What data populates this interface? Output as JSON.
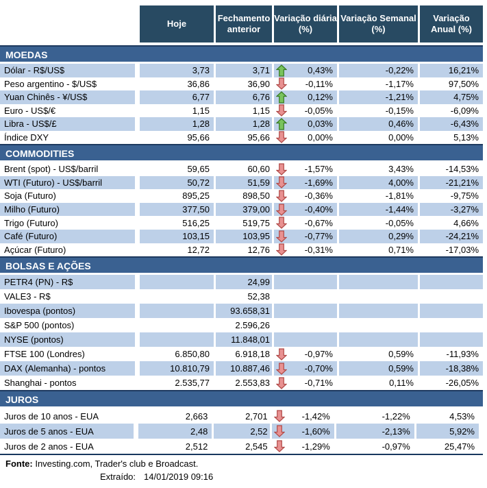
{
  "header": {
    "columns": [
      {
        "line1": "Hoje",
        "line2": ""
      },
      {
        "line1": "Fechamento",
        "line2": "anterior"
      },
      {
        "line1": "Variação diária",
        "line2": "(%)"
      },
      {
        "line1": "Variação Semanal",
        "line2": "(%)"
      },
      {
        "line1": "Variação",
        "line2": "Anual (%)"
      }
    ]
  },
  "sections": [
    {
      "title": "MOEDAS",
      "first_row_shaded": true,
      "rows": [
        {
          "label": "Dólar - R$/US$",
          "hoje": "3,73",
          "fechamento": "3,71",
          "arrow": "up",
          "diaria": "0,43%",
          "semanal": "-0,22%",
          "anual": "16,21%"
        },
        {
          "label": "Peso argentino - $/US$",
          "hoje": "36,86",
          "fechamento": "36,90",
          "arrow": "down",
          "diaria": "-0,11%",
          "semanal": "-1,17%",
          "anual": "97,50%"
        },
        {
          "label": "Yuan Chinês - ¥/US$",
          "hoje": "6,77",
          "fechamento": "6,76",
          "arrow": "up",
          "diaria": "0,12%",
          "semanal": "-1,21%",
          "anual": "4,75%"
        },
        {
          "label": "Euro - US$/€",
          "hoje": "1,15",
          "fechamento": "1,15",
          "arrow": "down",
          "diaria": "-0,05%",
          "semanal": "-0,15%",
          "anual": "-6,09%"
        },
        {
          "label": "Libra - US$/£",
          "hoje": "1,28",
          "fechamento": "1,28",
          "arrow": "up",
          "diaria": "0,03%",
          "semanal": "0,46%",
          "anual": "-6,43%"
        },
        {
          "label": "Índice DXY",
          "hoje": "95,66",
          "fechamento": "95,66",
          "arrow": "down",
          "diaria": "0,00%",
          "semanal": "0,00%",
          "anual": "5,13%"
        }
      ]
    },
    {
      "title": "COMMODITIES",
      "first_row_shaded": false,
      "rows": [
        {
          "label": "Brent (spot) - US$/barril",
          "hoje": "59,65",
          "fechamento": "60,60",
          "arrow": "down",
          "diaria": "-1,57%",
          "semanal": "3,43%",
          "anual": "-14,53%"
        },
        {
          "label": "WTI (Futuro) - US$/barril",
          "hoje": "50,72",
          "fechamento": "51,59",
          "arrow": "down",
          "diaria": "-1,69%",
          "semanal": "4,00%",
          "anual": "-21,21%"
        },
        {
          "label": "Soja (Futuro)",
          "hoje": "895,25",
          "fechamento": "898,50",
          "arrow": "down",
          "diaria": "-0,36%",
          "semanal": "-1,81%",
          "anual": "-9,75%"
        },
        {
          "label": "Milho (Futuro)",
          "hoje": "377,50",
          "fechamento": "379,00",
          "arrow": "down",
          "diaria": "-0,40%",
          "semanal": "-1,44%",
          "anual": "-3,27%"
        },
        {
          "label": "Trigo (Futuro)",
          "hoje": "516,25",
          "fechamento": "519,75",
          "arrow": "down",
          "diaria": "-0,67%",
          "semanal": "-0,05%",
          "anual": "4,66%"
        },
        {
          "label": "Café (Futuro)",
          "hoje": "103,15",
          "fechamento": "103,95",
          "arrow": "down",
          "diaria": "-0,77%",
          "semanal": "0,29%",
          "anual": "-24,21%"
        },
        {
          "label": "Açúcar (Futuro)",
          "hoje": "12,72",
          "fechamento": "12,76",
          "arrow": "down",
          "diaria": "-0,31%",
          "semanal": "0,71%",
          "anual": "-17,03%"
        }
      ]
    },
    {
      "title": "BOLSAS E AÇÕES",
      "first_row_shaded": true,
      "rows": [
        {
          "label": "PETR4 (PN) - R$",
          "hoje": "",
          "fechamento": "24,99",
          "arrow": "",
          "diaria": "",
          "semanal": "",
          "anual": ""
        },
        {
          "label": "VALE3 - R$",
          "hoje": "",
          "fechamento": "52,38",
          "arrow": "",
          "diaria": "",
          "semanal": "",
          "anual": ""
        },
        {
          "label": "Ibovespa (pontos)",
          "hoje": "",
          "fechamento": "93.658,31",
          "arrow": "",
          "diaria": "",
          "semanal": "",
          "anual": ""
        },
        {
          "label": "S&P 500 (pontos)",
          "hoje": "",
          "fechamento": "2.596,26",
          "arrow": "",
          "diaria": "",
          "semanal": "",
          "anual": ""
        },
        {
          "label": "NYSE (pontos)",
          "hoje": "",
          "fechamento": "11.848,01",
          "arrow": "",
          "diaria": "",
          "semanal": "",
          "anual": ""
        },
        {
          "label": "FTSE 100 (Londres)",
          "hoje": "6.850,80",
          "fechamento": "6.918,18",
          "arrow": "down",
          "diaria": "-0,97%",
          "semanal": "0,59%",
          "anual": "-11,93%"
        },
        {
          "label": "DAX (Alemanha) - pontos",
          "hoje": "10.810,79",
          "fechamento": "10.887,46",
          "arrow": "down",
          "diaria": "-0,70%",
          "semanal": "0,59%",
          "anual": "-18,38%"
        },
        {
          "label": "Shanghai - pontos",
          "hoje": "2.535,77",
          "fechamento": "2.553,83",
          "arrow": "down",
          "diaria": "-0,71%",
          "semanal": "0,11%",
          "anual": "-26,05%"
        }
      ]
    },
    {
      "title": "JUROS",
      "first_row_shaded": false,
      "rows": [
        {
          "label": "Juros de 10 anos - EUA",
          "hoje": "2,663",
          "fechamento": "2,701",
          "arrow": "down",
          "diaria": "-1,42%",
          "semanal": "-1,22%",
          "anual": "4,53%"
        },
        {
          "label": "Juros de 5 anos - EUA",
          "hoje": "2,48",
          "fechamento": "2,52",
          "arrow": "down",
          "diaria": "-1,60%",
          "semanal": "-2,13%",
          "anual": "5,92%"
        },
        {
          "label": "Juros de 2 anos - EUA",
          "hoje": "2,512",
          "fechamento": "2,545",
          "arrow": "down",
          "diaria": "-1,29%",
          "semanal": "-0,97%",
          "anual": "25,47%"
        }
      ]
    }
  ],
  "footer": {
    "fonte_label": "Fonte:",
    "fonte_text": " Investing.com, Trader's club e Broadcast.",
    "extraido_label": "Extraído:",
    "extraido_value": "14/01/2019 09:16"
  },
  "colors": {
    "header_bg": "#284A62",
    "section_bg": "#3A6191",
    "shaded_row": "#BDD0E8",
    "up_arrow_fill": "#79C35D",
    "up_arrow_stroke": "#357A21",
    "down_arrow_fill": "#E89191",
    "down_arrow_stroke": "#B04A48"
  }
}
